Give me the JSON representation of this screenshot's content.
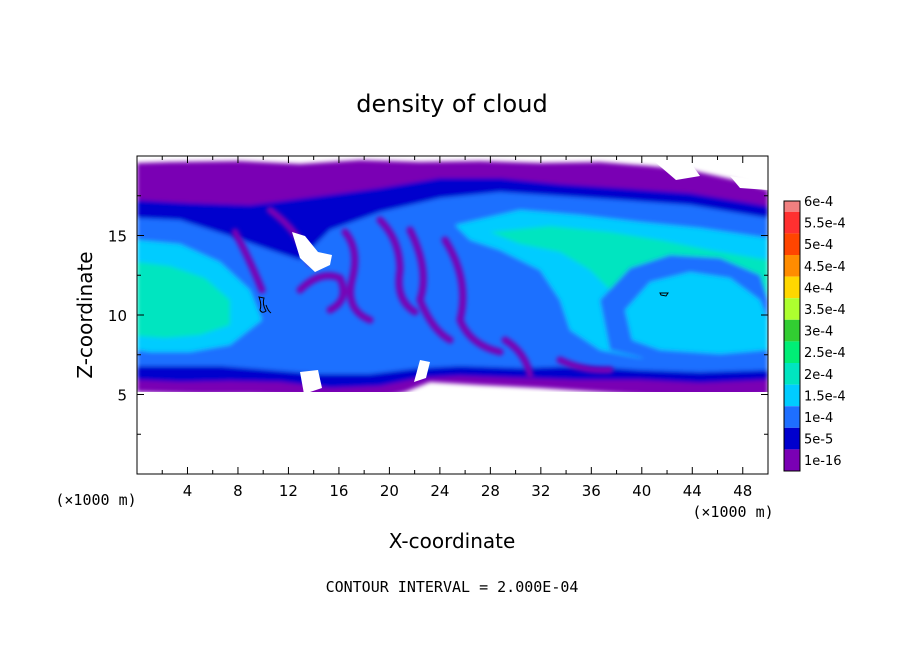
{
  "chart_data": {
    "type": "heatmap",
    "title": "density of cloud",
    "xlabel": "X-coordinate",
    "ylabel": "Z-coordinate",
    "x_unit": "(×1000 m)",
    "y_unit": "(×1000 m)",
    "xlim": [
      0,
      50
    ],
    "ylim": [
      0,
      20
    ],
    "x_ticks": [
      4,
      8,
      12,
      16,
      20,
      24,
      28,
      32,
      36,
      40,
      44,
      48
    ],
    "y_ticks": [
      5,
      10,
      15
    ],
    "footer": "CONTOUR INTERVAL = 2.000E-04",
    "legend": {
      "placement": "right",
      "levels": [
        {
          "label": "6e-4",
          "color": "#f08080"
        },
        {
          "label": "5.5e-4",
          "color": "#ff3030"
        },
        {
          "label": "5e-4",
          "color": "#ff4500"
        },
        {
          "label": "4.5e-4",
          "color": "#ff8c00"
        },
        {
          "label": "4e-4",
          "color": "#ffd700"
        },
        {
          "label": "3.5e-4",
          "color": "#adff2f"
        },
        {
          "label": "3e-4",
          "color": "#32cd32"
        },
        {
          "label": "2.5e-4",
          "color": "#00ee76"
        },
        {
          "label": "2e-4",
          "color": "#00e5c0"
        },
        {
          "label": "1.5e-4",
          "color": "#00ccff"
        },
        {
          "label": "1e-4",
          "color": "#1e6fff"
        },
        {
          "label": "5e-5",
          "color": "#0000cd"
        },
        {
          "label": "1e-16",
          "color": "#7a00b4"
        }
      ]
    }
  }
}
